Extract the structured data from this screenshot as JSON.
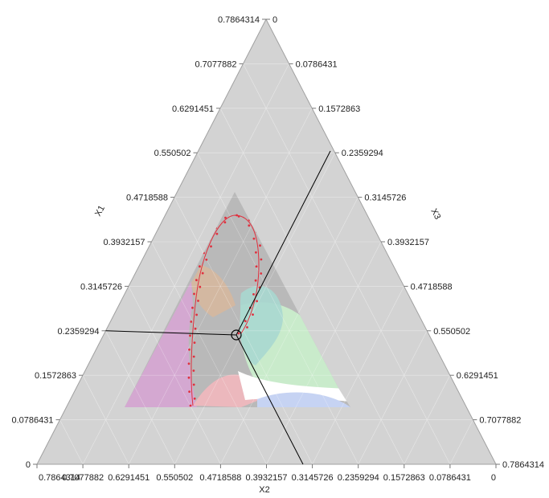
{
  "chart_data": {
    "type": "ternary",
    "axes": {
      "x1": {
        "label": "X1",
        "range": [
          0,
          0.7864314
        ]
      },
      "x2": {
        "label": "X2",
        "range": [
          0,
          0.7864314
        ]
      },
      "x3": {
        "label": "X3",
        "range": [
          0,
          0.7864314
        ]
      }
    },
    "left_ticks": [
      "0",
      "0.0786431",
      "0.1572863",
      "0.2359294",
      "0.3145726",
      "0.3932157",
      "0.4718588",
      "0.550502",
      "0.6291451",
      "0.7077882",
      "0.7864314"
    ],
    "right_ticks": [
      "0",
      "0.0786431",
      "0.1572863",
      "0.2359294",
      "0.3145726",
      "0.3932157",
      "0.4718588",
      "0.550502",
      "0.6291451",
      "0.7077882",
      "0.7864314"
    ],
    "bottom_ticks": [
      "0.7864314",
      "0.7077882",
      "0.6291451",
      "0.550502",
      "0.4718588",
      "0.3932157",
      "0.3145726",
      "0.2359294",
      "0.1572863",
      "0.0786431",
      "0"
    ],
    "crosshair": {
      "x1": 0.2359294,
      "x2": 0.3145726,
      "x3": 0.2359294
    },
    "feasible_region": {
      "x1_max": 0.46,
      "x2_max": 0.66,
      "x3_max": 0.7,
      "x1_min": 0.0786431
    },
    "grid": true,
    "colors": {
      "outer": "#d3d3d3",
      "inner": "#b9b9b9",
      "grid": "#e8e8e8",
      "axis_line": "#a0a0a0",
      "crosshair": "#000000",
      "pink": "#d7a6d4",
      "orange": "#dcb89a",
      "teal": "#a9d8d0",
      "green": "#c9ebcb",
      "blue": "#c6d3f3",
      "rose": "#f2b8be",
      "white": "#ffffff",
      "curve": "#e0303e"
    }
  }
}
